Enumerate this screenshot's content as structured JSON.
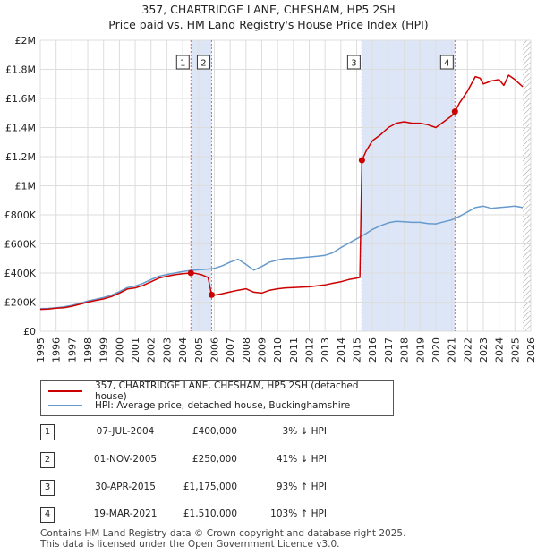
{
  "title_line1": "357, CHARTRIDGE LANE, CHESHAM, HP5 2SH",
  "title_line2": "Price paid vs. HM Land Registry's House Price Index (HPI)",
  "colors": {
    "price_paid": "#cc0000",
    "hpi": "#6699cc",
    "shade": "#dde6f7",
    "grid": "#dddddd"
  },
  "chart_data": {
    "type": "line",
    "title": "Price paid vs. HM Land Registry's House Price Index (HPI)",
    "xlim": [
      1995,
      2026
    ],
    "ylim": [
      0,
      2000000
    ],
    "x_ticks": [
      1995,
      1996,
      1997,
      1998,
      1999,
      2000,
      2001,
      2002,
      2003,
      2004,
      2005,
      2006,
      2007,
      2008,
      2009,
      2010,
      2011,
      2012,
      2013,
      2014,
      2015,
      2016,
      2017,
      2018,
      2019,
      2020,
      2021,
      2022,
      2023,
      2024,
      2025,
      2026
    ],
    "y_ticks": [
      {
        "value": 0,
        "label": "£0"
      },
      {
        "value": 200000,
        "label": "£200K"
      },
      {
        "value": 400000,
        "label": "£400K"
      },
      {
        "value": 600000,
        "label": "£600K"
      },
      {
        "value": 800000,
        "label": "£800K"
      },
      {
        "value": 1000000,
        "label": "£1M"
      },
      {
        "value": 1200000,
        "label": "£1.2M"
      },
      {
        "value": 1400000,
        "label": "£1.4M"
      },
      {
        "value": 1600000,
        "label": "£1.6M"
      },
      {
        "value": 1800000,
        "label": "£1.8M"
      },
      {
        "value": 2000000,
        "label": "£2M"
      }
    ],
    "series": [
      {
        "name": "357, CHARTRIDGE LANE, CHESHAM, HP5 2SH (detached house)",
        "color": "#cc0000",
        "x": [
          1995.0,
          1995.5,
          1996.0,
          1996.5,
          1997.0,
          1997.5,
          1998.0,
          1998.5,
          1999.0,
          1999.5,
          2000.0,
          2000.5,
          2001.0,
          2001.5,
          2002.0,
          2002.5,
          2003.0,
          2003.5,
          2004.0,
          2004.52,
          2004.8,
          2005.2,
          2005.6,
          2005.83,
          2006.0,
          2006.5,
          2007.0,
          2007.5,
          2008.0,
          2008.5,
          2009.0,
          2009.5,
          2010.0,
          2010.5,
          2011.0,
          2011.5,
          2012.0,
          2012.5,
          2013.0,
          2013.5,
          2014.0,
          2014.5,
          2015.0,
          2015.2,
          2015.33,
          2015.6,
          2016.0,
          2016.5,
          2017.0,
          2017.5,
          2018.0,
          2018.5,
          2019.0,
          2019.5,
          2020.0,
          2020.5,
          2021.0,
          2021.21,
          2021.5,
          2022.0,
          2022.5,
          2022.8,
          2023.0,
          2023.5,
          2024.0,
          2024.3,
          2024.6,
          2025.0,
          2025.3,
          2025.5
        ],
        "y": [
          150000,
          152000,
          158000,
          162000,
          172000,
          185000,
          200000,
          212000,
          222000,
          238000,
          262000,
          290000,
          298000,
          315000,
          340000,
          365000,
          378000,
          388000,
          395000,
          400000,
          398000,
          388000,
          370000,
          250000,
          248000,
          258000,
          270000,
          282000,
          292000,
          268000,
          262000,
          282000,
          292000,
          298000,
          300000,
          303000,
          305000,
          312000,
          318000,
          330000,
          340000,
          355000,
          365000,
          370000,
          1175000,
          1240000,
          1310000,
          1350000,
          1400000,
          1430000,
          1440000,
          1430000,
          1430000,
          1420000,
          1400000,
          1440000,
          1480000,
          1510000,
          1570000,
          1650000,
          1750000,
          1740000,
          1700000,
          1720000,
          1730000,
          1690000,
          1760000,
          1730000,
          1700000,
          1680000
        ]
      },
      {
        "name": "HPI: Average price, detached house, Buckinghamshire",
        "color": "#6699cc",
        "x": [
          1995.0,
          1995.5,
          1996.0,
          1996.5,
          1997.0,
          1997.5,
          1998.0,
          1998.5,
          1999.0,
          1999.5,
          2000.0,
          2000.5,
          2001.0,
          2001.5,
          2002.0,
          2002.5,
          2003.0,
          2003.5,
          2004.0,
          2004.5,
          2005.0,
          2005.5,
          2006.0,
          2006.5,
          2007.0,
          2007.5,
          2008.0,
          2008.5,
          2009.0,
          2009.5,
          2010.0,
          2010.5,
          2011.0,
          2011.5,
          2012.0,
          2012.5,
          2013.0,
          2013.5,
          2014.0,
          2014.5,
          2015.0,
          2015.5,
          2016.0,
          2016.5,
          2017.0,
          2017.5,
          2018.0,
          2018.5,
          2019.0,
          2019.5,
          2020.0,
          2020.5,
          2021.0,
          2021.5,
          2022.0,
          2022.5,
          2023.0,
          2023.5,
          2024.0,
          2024.5,
          2025.0,
          2025.5
        ],
        "y": [
          155000,
          157000,
          162000,
          168000,
          178000,
          192000,
          208000,
          220000,
          232000,
          248000,
          272000,
          300000,
          310000,
          330000,
          355000,
          378000,
          390000,
          400000,
          410000,
          418000,
          422000,
          426000,
          432000,
          450000,
          475000,
          495000,
          460000,
          420000,
          445000,
          475000,
          490000,
          500000,
          500000,
          505000,
          510000,
          515000,
          522000,
          540000,
          575000,
          605000,
          635000,
          665000,
          700000,
          725000,
          745000,
          755000,
          752000,
          748000,
          748000,
          740000,
          738000,
          752000,
          765000,
          790000,
          820000,
          850000,
          860000,
          845000,
          850000,
          855000,
          860000,
          850000
        ]
      }
    ],
    "sales": [
      {
        "id": "1",
        "x": 2004.52,
        "price": 400000
      },
      {
        "id": "2",
        "x": 2005.83,
        "price": 250000
      },
      {
        "id": "3",
        "x": 2015.33,
        "price": 1175000
      },
      {
        "id": "4",
        "x": 2021.21,
        "price": 1510000
      }
    ],
    "shaded_ranges": [
      [
        2004.52,
        2005.83
      ],
      [
        2015.33,
        2021.21
      ]
    ],
    "hatched_from": 2025.5
  },
  "legend": [
    {
      "label": "357, CHARTRIDGE LANE, CHESHAM, HP5 2SH (detached house)",
      "color": "#cc0000"
    },
    {
      "label": "HPI: Average price, detached house, Buckinghamshire",
      "color": "#6699cc"
    }
  ],
  "transactions": [
    {
      "num": "1",
      "date": "07-JUL-2004",
      "price": "£400,000",
      "hpi": "3% ↓ HPI"
    },
    {
      "num": "2",
      "date": "01-NOV-2005",
      "price": "£250,000",
      "hpi": "41% ↓ HPI"
    },
    {
      "num": "3",
      "date": "30-APR-2015",
      "price": "£1,175,000",
      "hpi": "93% ↑ HPI"
    },
    {
      "num": "4",
      "date": "19-MAR-2021",
      "price": "£1,510,000",
      "hpi": "103% ↑ HPI"
    }
  ],
  "footer_line1": "Contains HM Land Registry data © Crown copyright and database right 2025.",
  "footer_line2": "This data is licensed under the Open Government Licence v3.0."
}
